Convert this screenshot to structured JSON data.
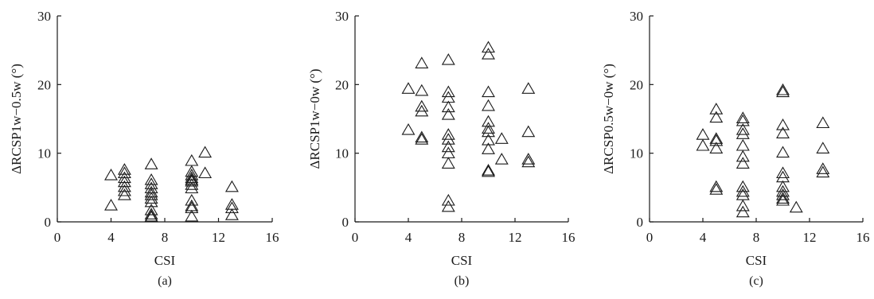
{
  "chart_data": [
    {
      "type": "scatter",
      "panel_label": "(a)",
      "xlabel": "CSI",
      "ylabel": "ΔRCSP1w−0.5w (°)",
      "xlim": [
        0,
        16
      ],
      "ylim": [
        0,
        30
      ],
      "xticks": [
        "0",
        "4",
        "8",
        "12",
        "16"
      ],
      "yticks": [
        "0",
        "10",
        "20",
        "30"
      ],
      "marker": "open-triangle",
      "x": [
        4,
        4,
        5,
        5,
        5,
        5,
        5,
        5,
        5,
        7,
        7,
        7,
        7,
        7,
        7,
        7,
        7,
        7,
        7,
        7,
        7,
        10,
        10,
        10,
        10,
        10,
        10,
        10,
        10,
        10,
        10,
        10,
        10,
        11,
        11,
        13,
        13,
        13,
        13
      ],
      "y": [
        6.7,
        2.3,
        7.5,
        7.0,
        6.3,
        5.7,
        5.0,
        4.4,
        3.8,
        8.3,
        6.0,
        5.4,
        4.8,
        4.2,
        3.8,
        3.3,
        2.8,
        1.6,
        1.0,
        0.7,
        0.6,
        8.8,
        7.2,
        6.7,
        6.3,
        6.0,
        5.8,
        5.3,
        4.8,
        3.0,
        2.2,
        1.9,
        0.7,
        10.0,
        7.0,
        5.0,
        2.4,
        1.9,
        0.9
      ]
    },
    {
      "type": "scatter",
      "panel_label": "(b)",
      "xlabel": "CSI",
      "ylabel": "ΔRCSP1w−0w (°)",
      "xlim": [
        0,
        16
      ],
      "ylim": [
        0,
        30
      ],
      "xticks": [
        "0",
        "4",
        "8",
        "12",
        "16"
      ],
      "yticks": [
        "0",
        "10",
        "20",
        "30"
      ],
      "marker": "open-triangle",
      "x": [
        4,
        4,
        5,
        5,
        5,
        5,
        5,
        5,
        7,
        7,
        7,
        7,
        7,
        7,
        7,
        7,
        7,
        7,
        7,
        7,
        10,
        10,
        10,
        10,
        10,
        10,
        10,
        10,
        10,
        10,
        10,
        11,
        11,
        13,
        13,
        13,
        13
      ],
      "y": [
        19.3,
        13.3,
        23.0,
        19.0,
        16.7,
        16.0,
        12.2,
        11.9,
        23.5,
        18.8,
        18.0,
        16.6,
        15.5,
        12.6,
        11.9,
        10.8,
        9.9,
        8.4,
        3.0,
        2.1,
        25.3,
        24.3,
        18.8,
        16.8,
        14.5,
        13.5,
        13.0,
        11.8,
        10.5,
        7.4,
        7.2,
        12.0,
        9.0,
        19.3,
        13.0,
        9.0,
        8.6
      ]
    },
    {
      "type": "scatter",
      "panel_label": "(c)",
      "xlabel": "CSI",
      "ylabel": "ΔRCSP0.5w−0w (°)",
      "xlim": [
        0,
        16
      ],
      "ylim": [
        0,
        30
      ],
      "xticks": [
        "0",
        "4",
        "8",
        "12",
        "16"
      ],
      "yticks": [
        "0",
        "10",
        "20",
        "30"
      ],
      "marker": "open-triangle",
      "x": [
        4,
        4,
        5,
        5,
        5,
        5,
        5,
        5,
        5,
        7,
        7,
        7,
        7,
        7,
        7,
        7,
        7,
        7,
        7,
        7,
        7,
        10,
        10,
        10,
        10,
        10,
        10,
        10,
        10,
        10,
        10,
        10,
        10,
        11,
        13,
        13,
        13,
        13
      ],
      "y": [
        12.6,
        11.0,
        16.3,
        15.1,
        12.0,
        11.7,
        10.6,
        5.0,
        4.6,
        15.0,
        14.6,
        13.3,
        12.7,
        11.0,
        9.4,
        8.4,
        5.0,
        4.3,
        3.8,
        2.2,
        1.3,
        19.1,
        18.8,
        14.0,
        12.8,
        10.0,
        7.0,
        6.4,
        5.0,
        4.3,
        3.8,
        3.3,
        3.0,
        2.0,
        14.3,
        10.6,
        7.6,
        7.1
      ]
    }
  ]
}
